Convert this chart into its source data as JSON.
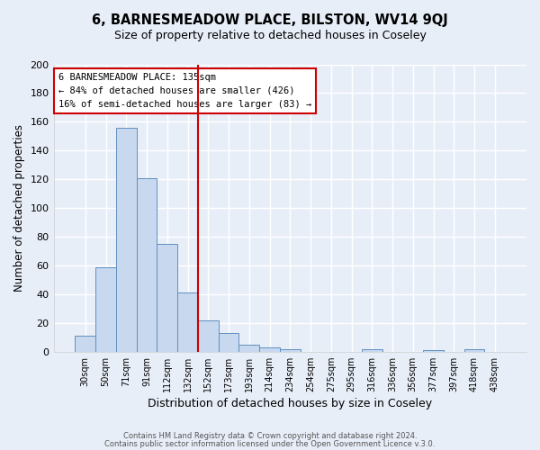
{
  "title": "6, BARNESMEADOW PLACE, BILSTON, WV14 9QJ",
  "subtitle": "Size of property relative to detached houses in Coseley",
  "xlabel": "Distribution of detached houses by size in Coseley",
  "ylabel": "Number of detached properties",
  "bar_color": "#c8d8ee",
  "bar_edge_color": "#6090c0",
  "categories": [
    "30sqm",
    "50sqm",
    "71sqm",
    "91sqm",
    "112sqm",
    "132sqm",
    "152sqm",
    "173sqm",
    "193sqm",
    "214sqm",
    "234sqm",
    "254sqm",
    "275sqm",
    "295sqm",
    "316sqm",
    "336sqm",
    "356sqm",
    "377sqm",
    "397sqm",
    "418sqm",
    "438sqm"
  ],
  "values": [
    11,
    59,
    156,
    121,
    75,
    41,
    22,
    13,
    5,
    3,
    2,
    0,
    0,
    0,
    2,
    0,
    0,
    1,
    0,
    2,
    0
  ],
  "vline_x": 5.5,
  "vline_color": "#cc0000",
  "ylim": [
    0,
    200
  ],
  "yticks": [
    0,
    20,
    40,
    60,
    80,
    100,
    120,
    140,
    160,
    180,
    200
  ],
  "annotation_box_text": "6 BARNESMEADOW PLACE: 135sqm\n← 84% of detached houses are smaller (426)\n16% of semi-detached houses are larger (83) →",
  "footer1": "Contains HM Land Registry data © Crown copyright and database right 2024.",
  "footer2": "Contains public sector information licensed under the Open Government Licence v.3.0.",
  "fig_background_color": "#e8eef8",
  "plot_background_color": "#e8eef8",
  "grid_color": "#ffffff"
}
